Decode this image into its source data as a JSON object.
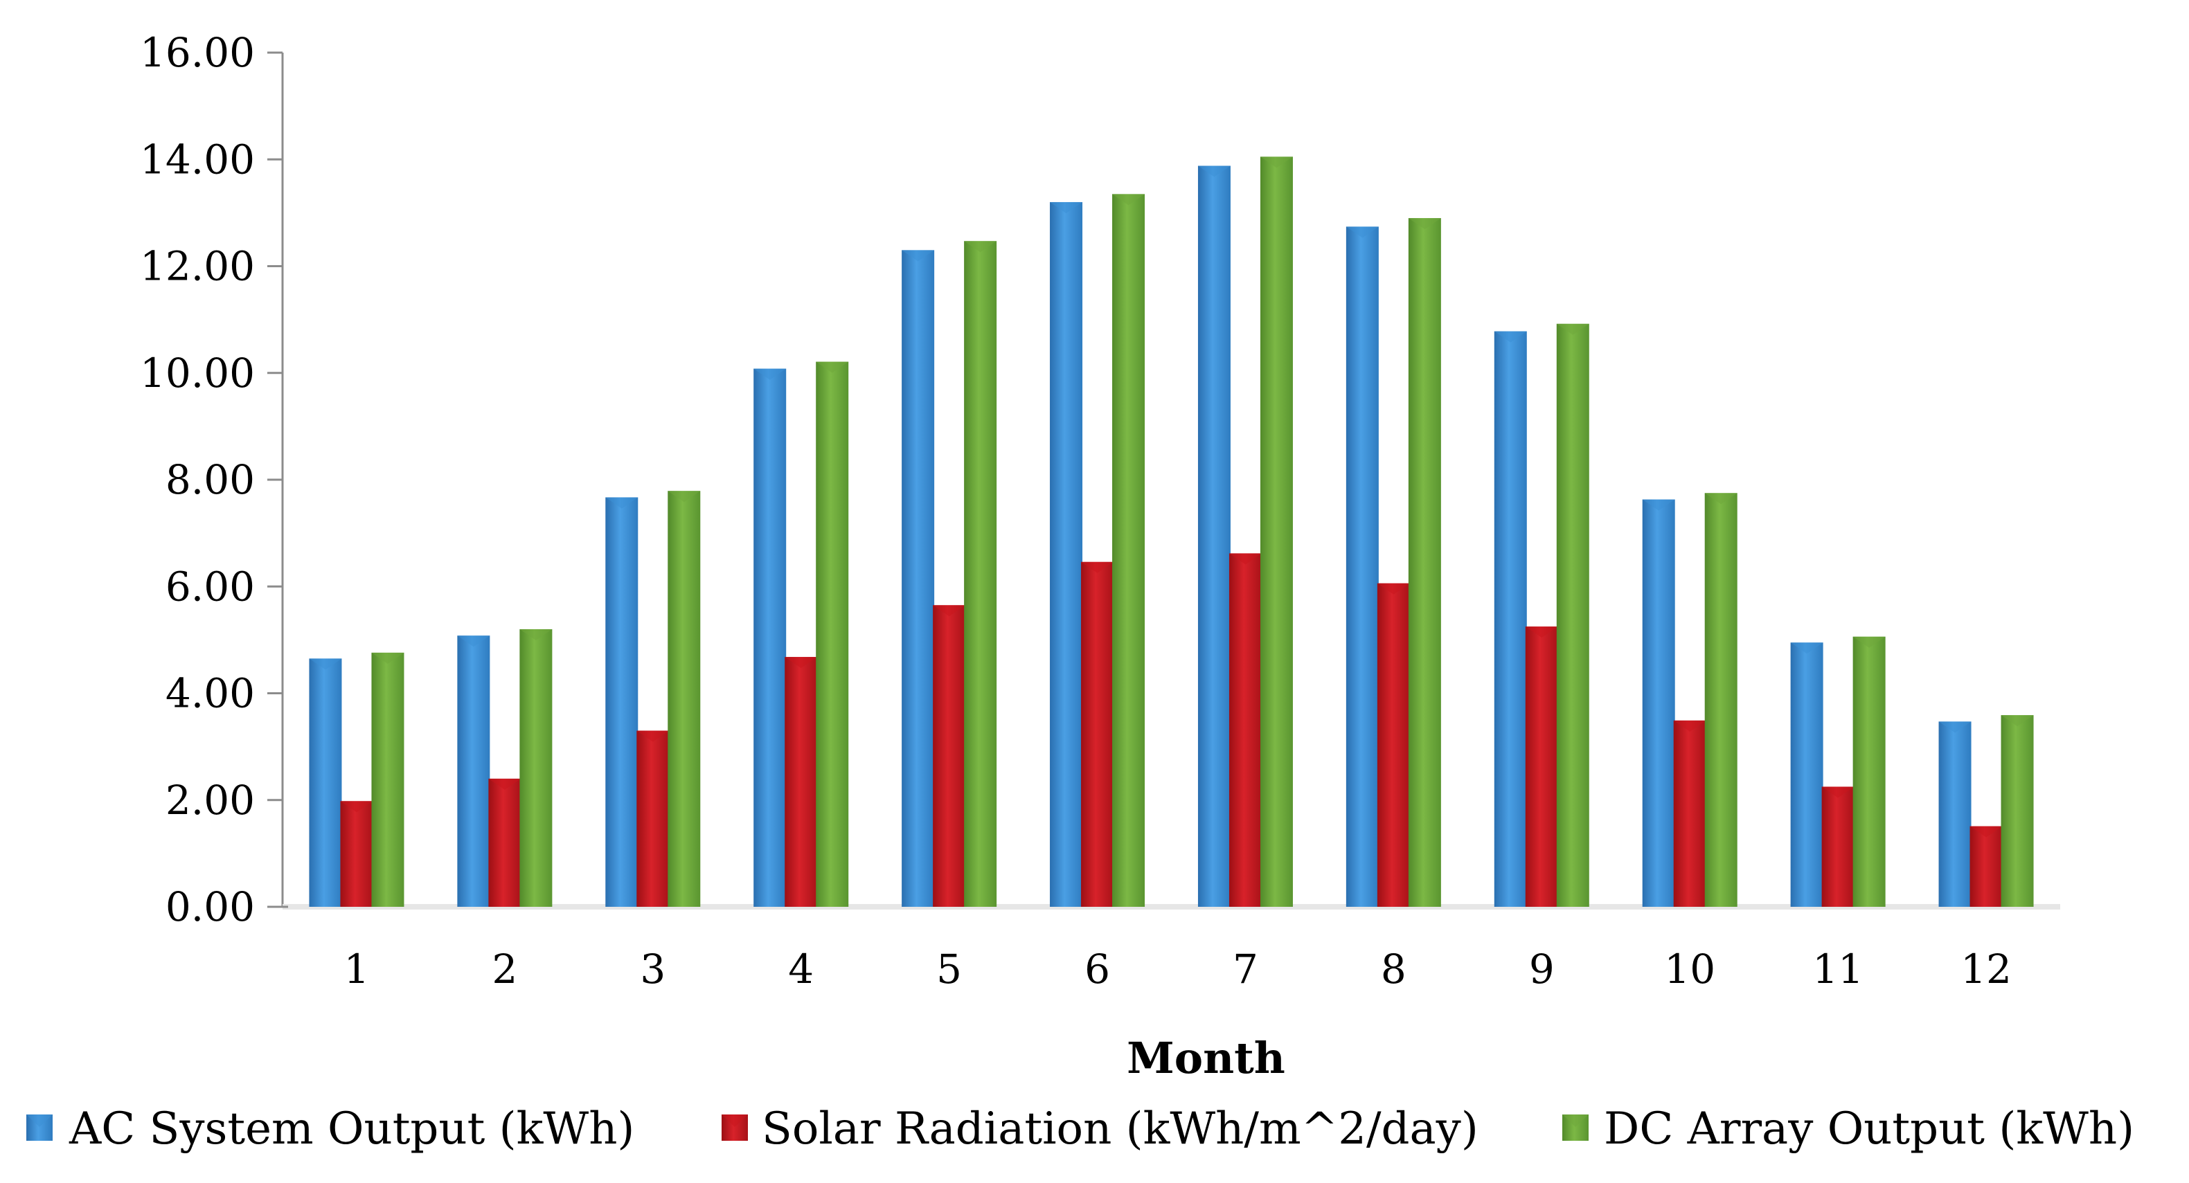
{
  "chart_data": {
    "type": "bar",
    "title": "",
    "xlabel": "Month",
    "ylabel": "",
    "ylim": [
      0,
      16
    ],
    "yticks": [
      "0.00",
      "2.00",
      "4.00",
      "6.00",
      "8.00",
      "10.00",
      "12.00",
      "14.00",
      "16.00"
    ],
    "categories": [
      "1",
      "2",
      "3",
      "4",
      "5",
      "6",
      "7",
      "8",
      "9",
      "10",
      "11",
      "12"
    ],
    "grid": false,
    "legend_position": "bottom",
    "series": [
      {
        "name": "AC System Output (kWh)",
        "color": "#3d8fd6",
        "values": [
          4.65,
          5.08,
          7.67,
          10.08,
          12.3,
          13.2,
          13.88,
          12.74,
          10.78,
          7.63,
          4.95,
          3.47
        ]
      },
      {
        "name": "Solar Radiation (kWh/m^2/day)",
        "color": "#c8161d",
        "values": [
          1.98,
          2.4,
          3.3,
          4.68,
          5.65,
          6.46,
          6.62,
          6.06,
          5.25,
          3.49,
          2.25,
          1.51
        ]
      },
      {
        "name": "DC Array Output (kWh)",
        "color": "#6fa83c",
        "values": [
          4.76,
          5.2,
          7.79,
          10.21,
          12.47,
          13.35,
          14.05,
          12.9,
          10.92,
          7.75,
          5.06,
          3.59
        ]
      }
    ]
  }
}
